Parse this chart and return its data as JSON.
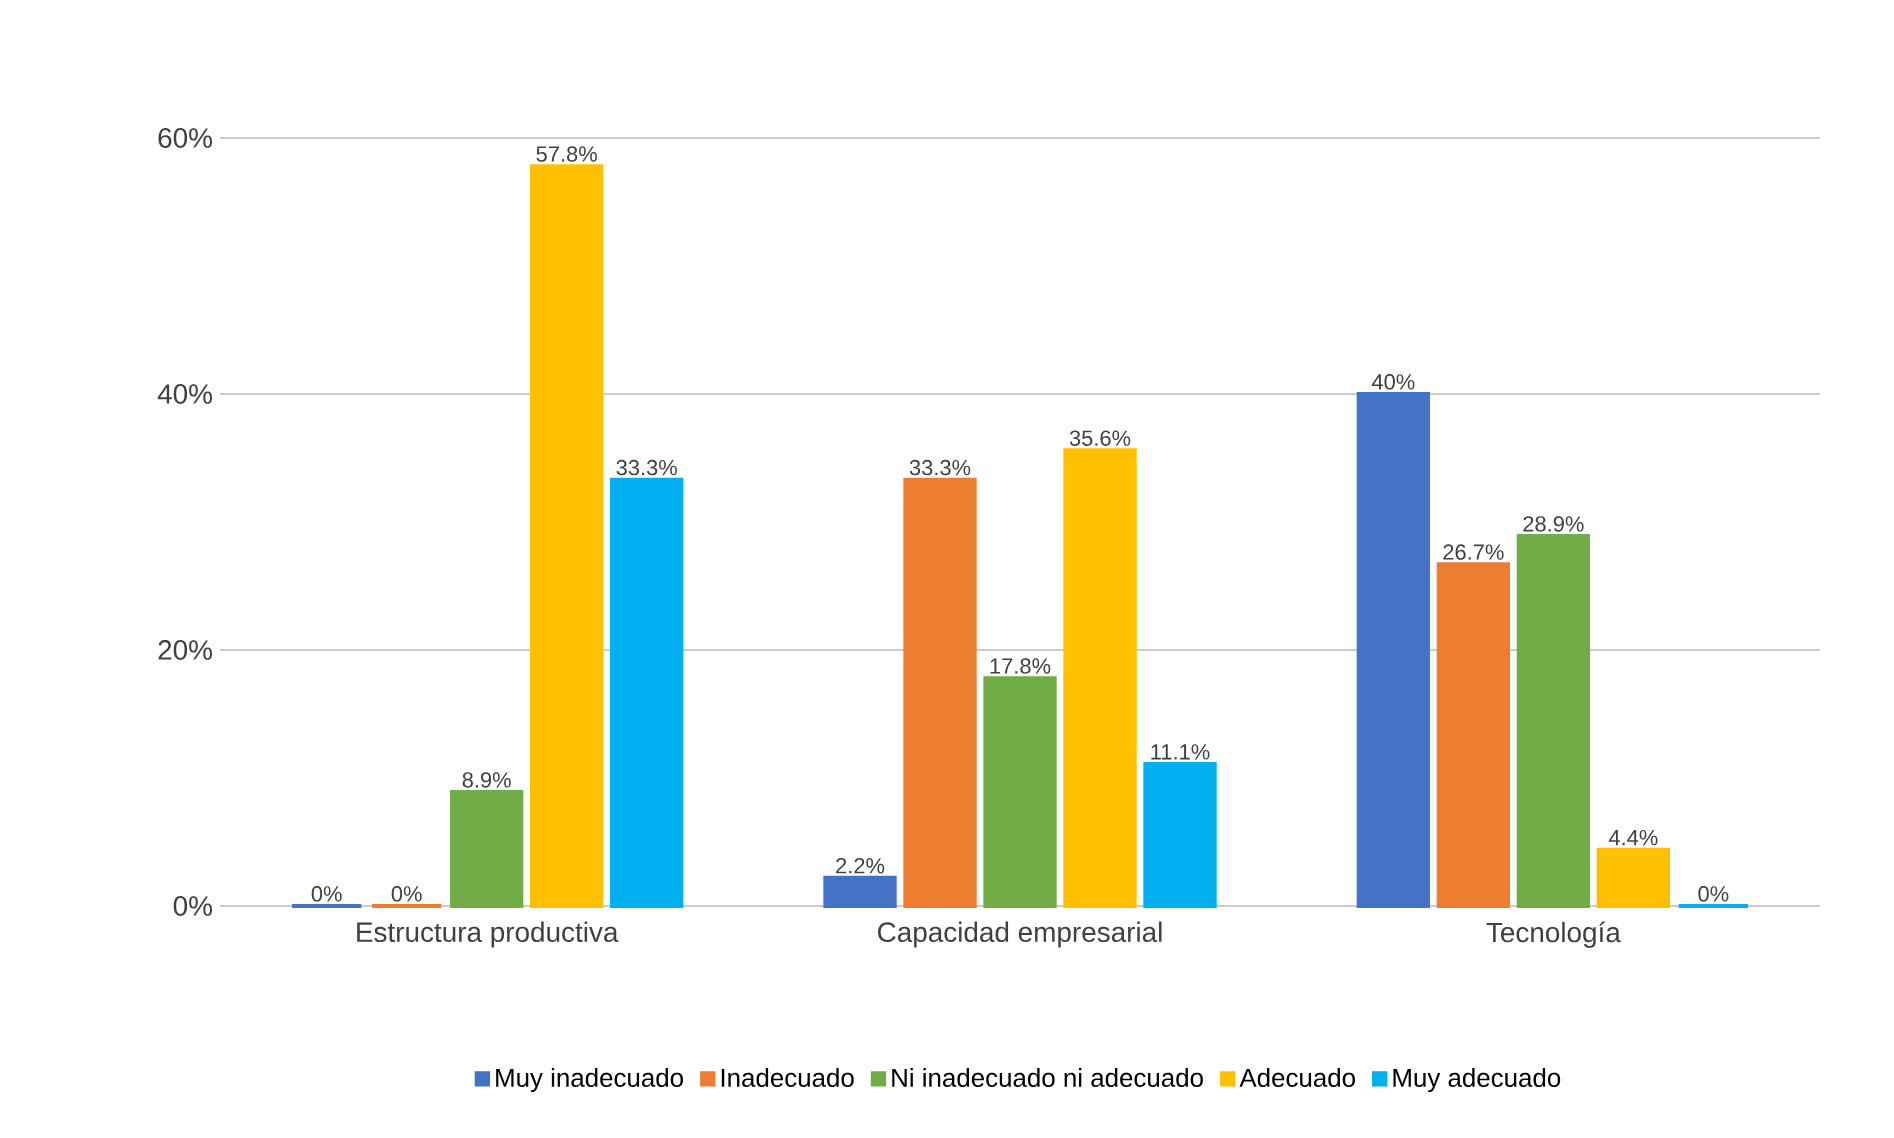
{
  "chart_data": {
    "type": "bar",
    "categories": [
      "Estructura productiva",
      "Capacidad empresarial",
      "Tecnología"
    ],
    "series": [
      {
        "name": "Muy inadecuado",
        "color": "#4472c4",
        "values": [
          0,
          2.2,
          40
        ],
        "value_labels": [
          "0%",
          "2.2%",
          "40%"
        ]
      },
      {
        "name": "Inadecuado",
        "color": "#ed7d31",
        "values": [
          0,
          33.3,
          26.7
        ],
        "value_labels": [
          "0%",
          "33.3%",
          "26.7%"
        ]
      },
      {
        "name": "Ni inadecuado ni adecuado",
        "color": "#70ad47",
        "values": [
          8.9,
          17.8,
          28.9
        ],
        "value_labels": [
          "8.9%",
          "17.8%",
          "28.9%"
        ]
      },
      {
        "name": "Adecuado",
        "color": "#ffc000",
        "values": [
          57.8,
          35.6,
          4.4
        ],
        "value_labels": [
          "57.8%",
          "35.6%",
          "4.4%"
        ]
      },
      {
        "name": "Muy adecuado",
        "color": "#00b0f0",
        "values": [
          33.3,
          11.1,
          0
        ],
        "value_labels": [
          "33.3%",
          "11.1%",
          "0%"
        ]
      }
    ],
    "ylim": [
      0,
      60
    ],
    "yticks": [
      {
        "value": 0,
        "label": "0%"
      },
      {
        "value": 20,
        "label": "20%"
      },
      {
        "value": 40,
        "label": "40%"
      },
      {
        "value": 60,
        "label": "60%"
      }
    ],
    "grid": "y",
    "legend": "bottom"
  }
}
